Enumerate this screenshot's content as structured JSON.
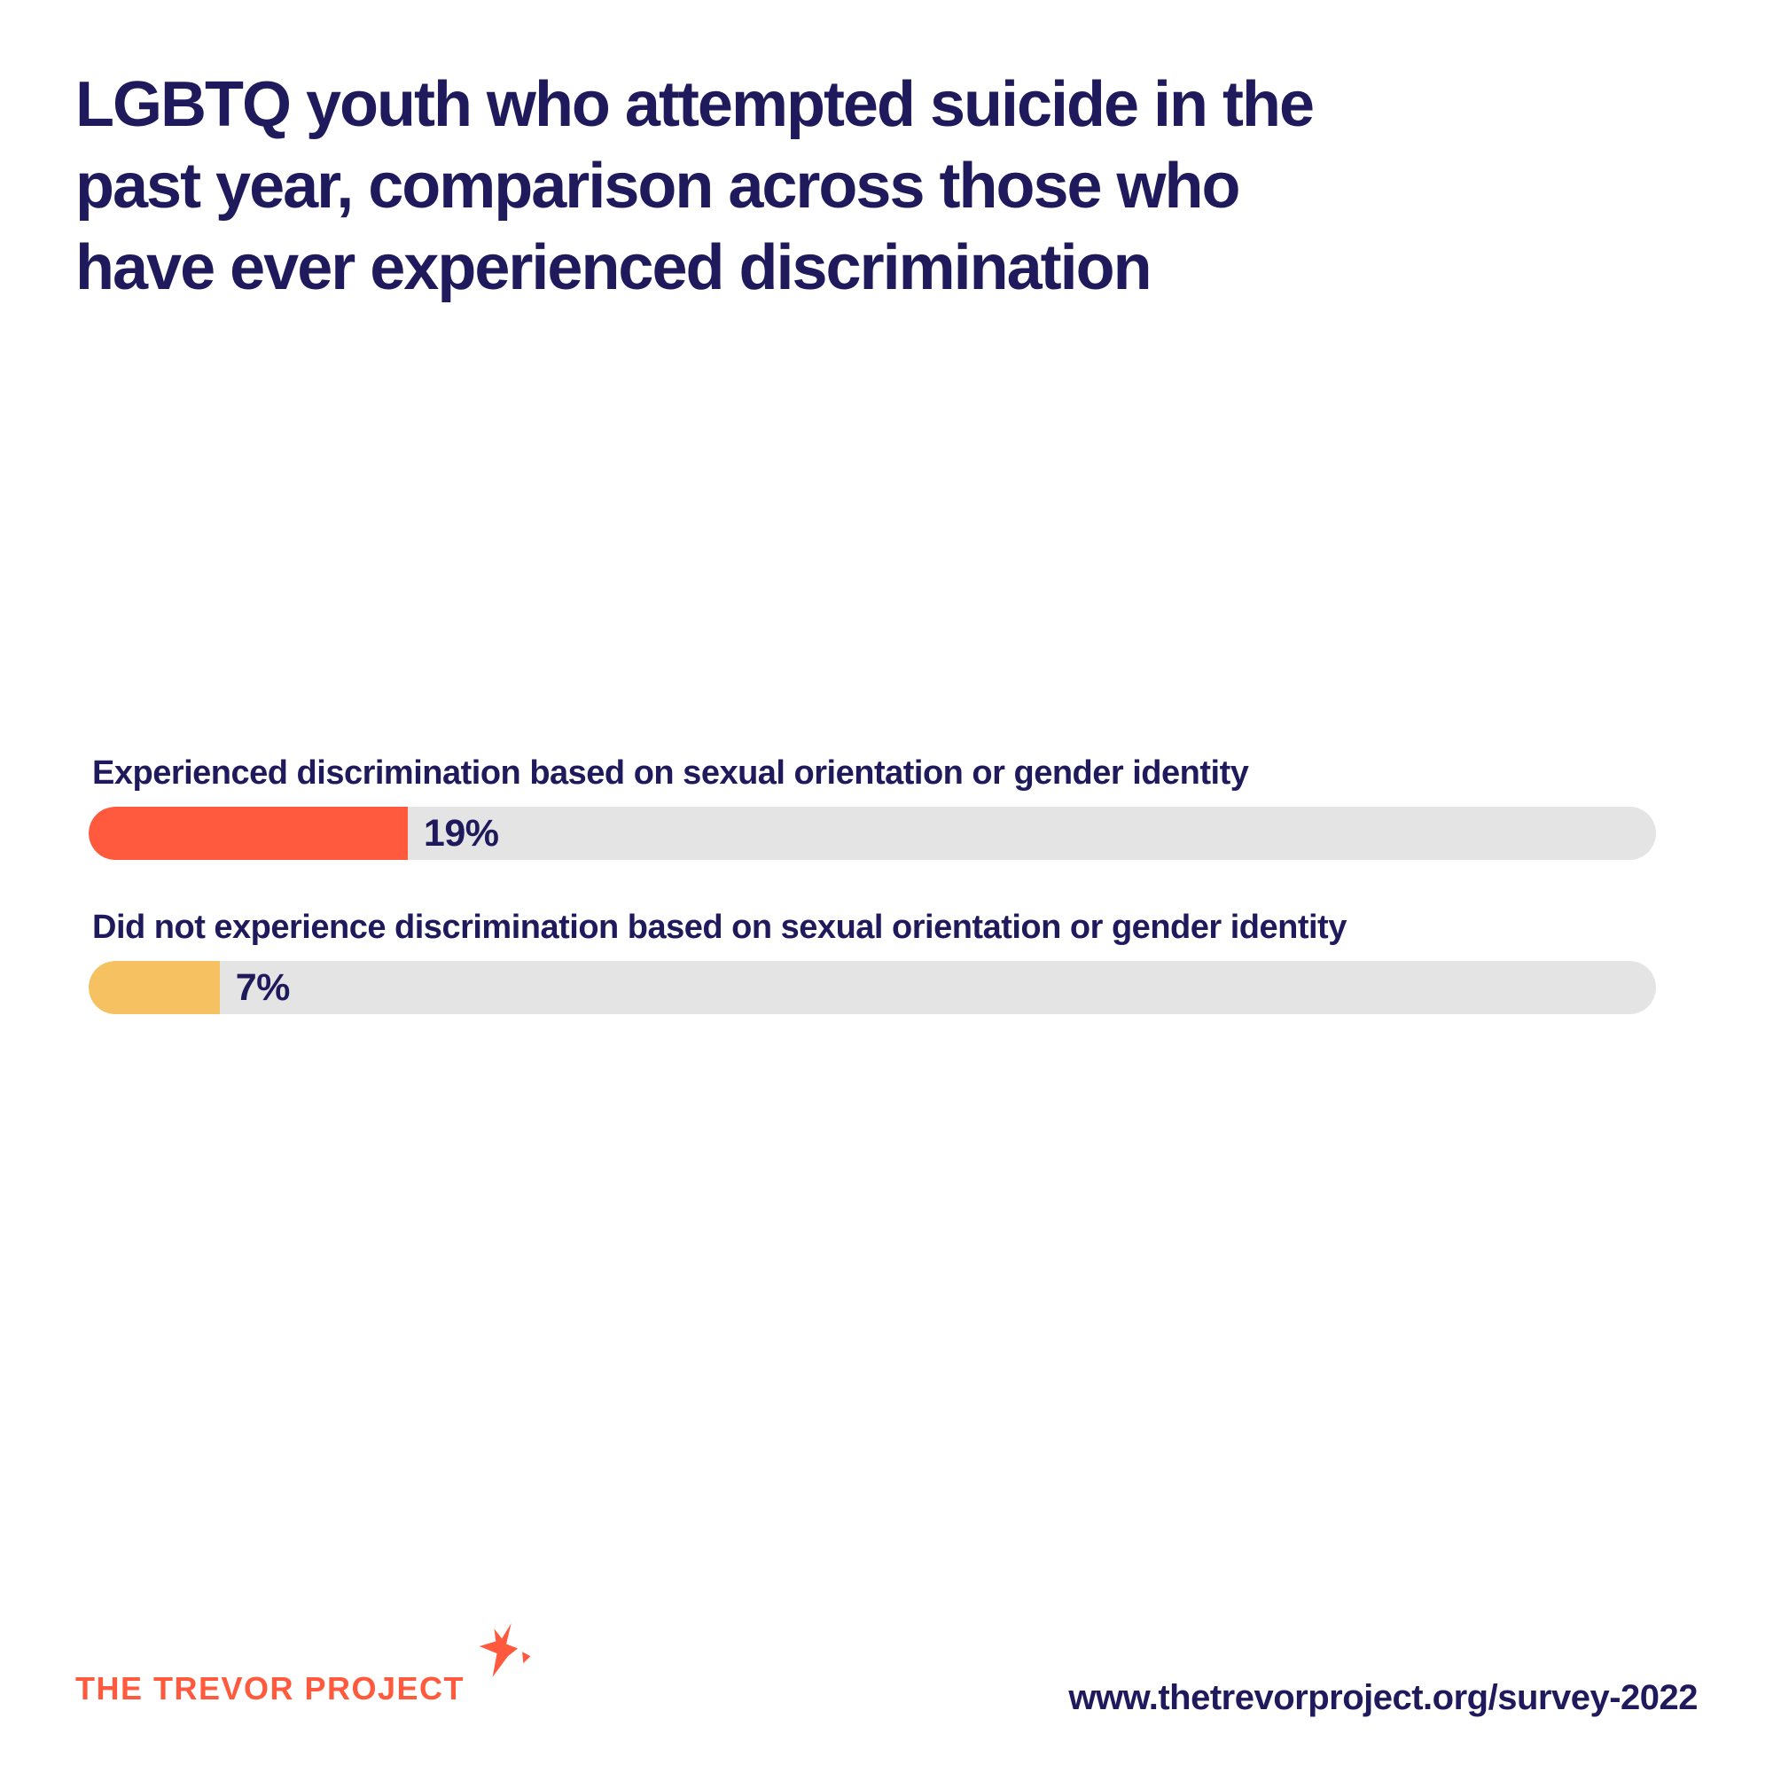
{
  "title": {
    "text": "LGBTQ youth who attempted suicide in the past year, comparison across those who have ever experienced discrimination",
    "lines": [
      "LGBTQ youth who attempted suicide in the",
      "past year, comparison across those who",
      "have ever experienced discrimination"
    ]
  },
  "chart_data": {
    "type": "bar",
    "orientation": "horizontal",
    "title": "LGBTQ youth who attempted suicide in the past year, comparison across those who have ever experienced discrimination",
    "categories": [
      "Experienced discrimination based on sexual orientation or gender identity",
      "Did not experience discrimination based on sexual orientation or gender identity"
    ],
    "values": [
      19,
      7
    ],
    "value_labels": [
      "19%",
      "7%"
    ],
    "unit": "percent",
    "xlim": [
      0,
      100
    ],
    "bar_colors": [
      "#ff5a3d",
      "#f6c161"
    ],
    "track_color": "#e4e4e4",
    "grid": false,
    "legend": "none"
  },
  "footer": {
    "logo_text": "THE TREVOR PROJECT",
    "url": "www.thetrevorproject.org/survey-2022"
  },
  "colors": {
    "navy": "#1f1a5c",
    "orange": "#ff5a3d",
    "yellow": "#f6c161",
    "track": "#e4e4e4",
    "background": "#ffffff"
  }
}
